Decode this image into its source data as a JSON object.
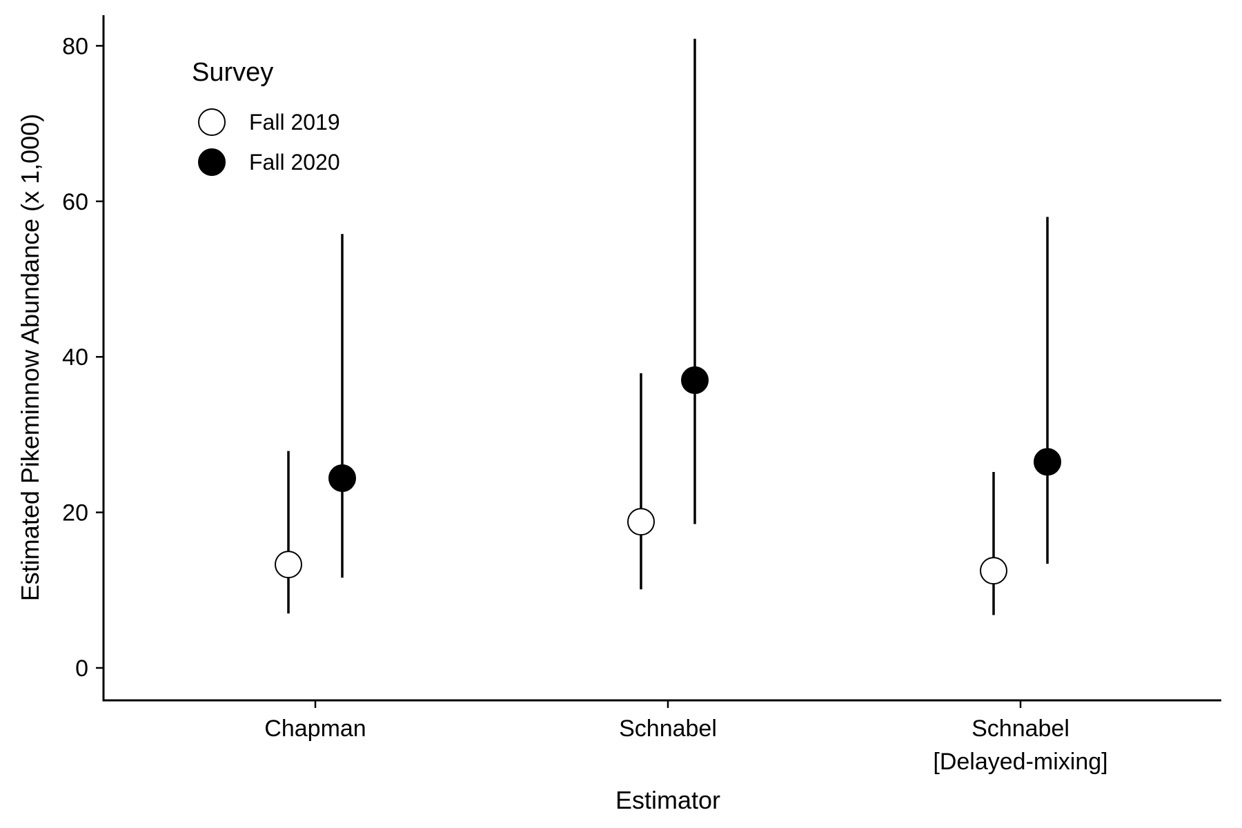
{
  "chart_data": {
    "type": "scatter",
    "title": "",
    "xlabel": "Estimator",
    "ylabel": "Estimated Pikeminnow Abundance (x 1,000)",
    "categories": [
      [
        "Chapman"
      ],
      [
        "Schnabel"
      ],
      [
        "Schnabel",
        "[Delayed-mixing]"
      ]
    ],
    "yticks": [
      0,
      20,
      40,
      60,
      80
    ],
    "ylim": [
      -4,
      84
    ],
    "grid": false,
    "legend": {
      "title": "Survey",
      "position": "top-left"
    },
    "series": [
      {
        "name": "Fall 2019",
        "marker": "open-circle",
        "values": [
          13.3,
          18.8,
          12.5
        ],
        "lower": [
          7.0,
          10.1,
          6.8
        ],
        "upper": [
          27.9,
          37.9,
          25.2
        ]
      },
      {
        "name": "Fall 2020",
        "marker": "filled-circle",
        "values": [
          24.4,
          37.0,
          26.5
        ],
        "lower": [
          11.6,
          18.5,
          13.4
        ],
        "upper": [
          55.8,
          80.9,
          58.0
        ]
      }
    ]
  }
}
